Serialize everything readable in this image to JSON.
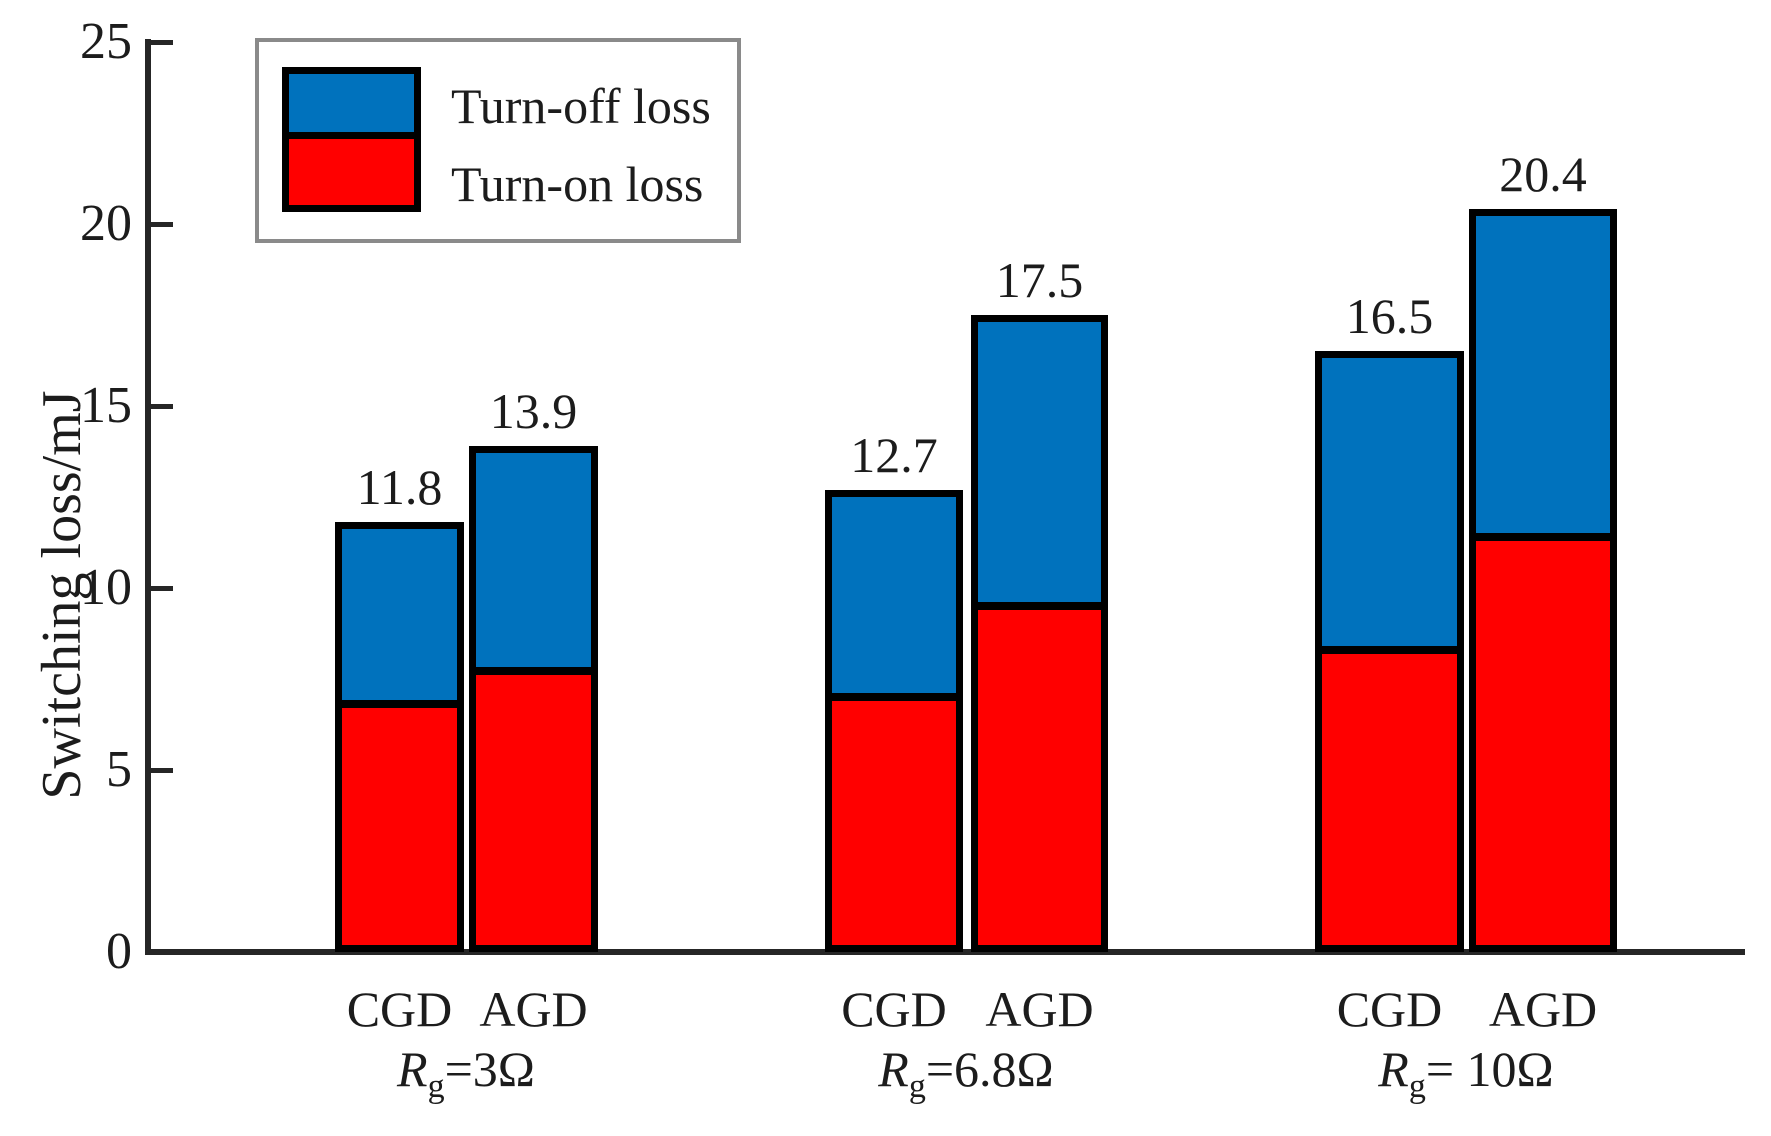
{
  "chart_data": {
    "type": "bar",
    "stacked": true,
    "ylabel": "Switching loss/mJ",
    "ylim": [
      0,
      25
    ],
    "yticks": [
      0,
      5,
      10,
      15,
      20,
      25
    ],
    "grid": false,
    "legend": {
      "position": "top-left",
      "entries": [
        {
          "name": "Turn-off loss",
          "series_key": "turn_off",
          "color": "#0072BD"
        },
        {
          "name": "Turn-on loss",
          "series_key": "turn_on",
          "color": "#FF0000"
        }
      ]
    },
    "series_colors": {
      "turn_on": "#FF0000",
      "turn_off": "#0072BD"
    },
    "bar_border_color": "#000000",
    "groups": [
      {
        "label_parts": {
          "symbol": "R",
          "subscript": "g",
          "rest": "=3Ω"
        },
        "bars": [
          {
            "name": "CGD",
            "total": 11.8,
            "turn_on": 6.7,
            "turn_off": 5.1
          },
          {
            "name": "AGD",
            "total": 13.9,
            "turn_on": 7.6,
            "turn_off": 6.3
          }
        ]
      },
      {
        "label_parts": {
          "symbol": "R",
          "subscript": "g",
          "rest": "=6.8Ω"
        },
        "bars": [
          {
            "name": "CGD",
            "total": 12.7,
            "turn_on": 6.9,
            "turn_off": 5.8
          },
          {
            "name": "AGD",
            "total": 17.5,
            "turn_on": 9.4,
            "turn_off": 8.1
          }
        ]
      },
      {
        "label_parts": {
          "symbol": "R",
          "subscript": "g",
          "rest": "= 10Ω"
        },
        "bars": [
          {
            "name": "CGD",
            "total": 16.5,
            "turn_on": 8.2,
            "turn_off": 8.3
          },
          {
            "name": "AGD",
            "total": 20.4,
            "turn_on": 11.3,
            "turn_off": 9.1
          }
        ]
      }
    ]
  }
}
